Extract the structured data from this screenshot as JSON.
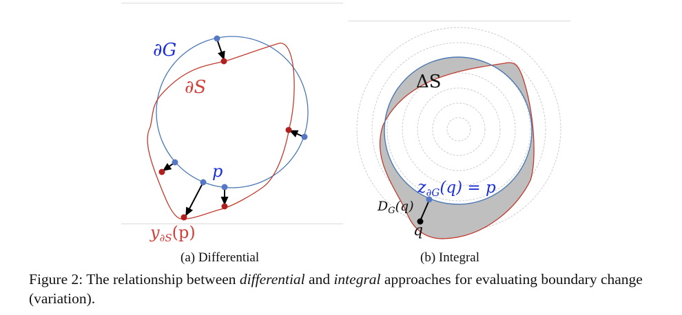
{
  "panel_a": {
    "label_dG": "∂G",
    "label_dS": "∂S",
    "label_p": "p",
    "label_y_main": "y",
    "label_y_sub": "∂S",
    "label_y_arg": "(p)",
    "subcaption": "(a) Differential",
    "colors": {
      "circle": "#4a78b5",
      "curve": "#c0392b",
      "blue_point": "#5577c4",
      "red_point": "#b21f1f",
      "arrow": "#000000"
    }
  },
  "panel_b": {
    "label_deltaS": "ΔS",
    "label_z_main": "z",
    "label_z_sub": "∂G",
    "label_z_rest": "(q) = p",
    "label_D_main": "D",
    "label_D_sub": "G",
    "label_D_arg": "(q)",
    "label_q": "q",
    "subcaption": "(b) Integral",
    "colors": {
      "fill": "#bfbfbf",
      "rings": "#cccccc"
    }
  },
  "caption": {
    "prefix": "Figure 2: The relationship between ",
    "term1": "differential",
    "middle": " and ",
    "term2": "integral",
    "suffix": " approaches for evaluating boundary change (variation)."
  }
}
